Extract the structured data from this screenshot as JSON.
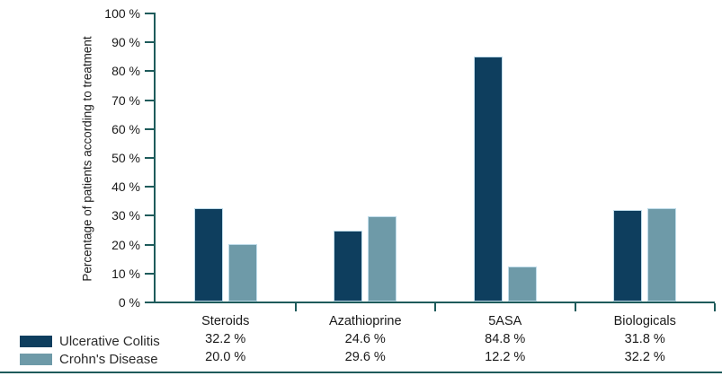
{
  "chart_data": {
    "type": "bar",
    "title": "",
    "xlabel": "",
    "ylabel": "Percentage of patients according to treatment",
    "ylim": [
      0,
      100
    ],
    "ytick_step": 10,
    "ytick_suffix": " %",
    "grid": false,
    "legend_position": "bottom-left",
    "categories": [
      "Steroids",
      "Azathioprine",
      "5ASA",
      "Biologicals"
    ],
    "series": [
      {
        "name": "Ulcerative Colitis",
        "color": "#0E3E5E",
        "values": [
          32.2,
          24.6,
          84.8,
          31.8
        ],
        "labels": [
          "32.2 %",
          "24.6 %",
          "84.8 %",
          "31.8 %"
        ]
      },
      {
        "name": "Crohn's Disease",
        "color": "#6E9AA8",
        "values": [
          20.0,
          29.6,
          12.2,
          32.2
        ],
        "labels": [
          "20.0 %",
          "29.6 %",
          "12.2 %",
          "32.2 %"
        ]
      }
    ]
  },
  "colors": {
    "axis": "#1E5B5B",
    "text": "#1A1A1A",
    "bar_border": "#BFDCEA",
    "series_dark": "#0E3E5E",
    "series_light": "#6E9AA8",
    "background": "#FFFFFF"
  }
}
